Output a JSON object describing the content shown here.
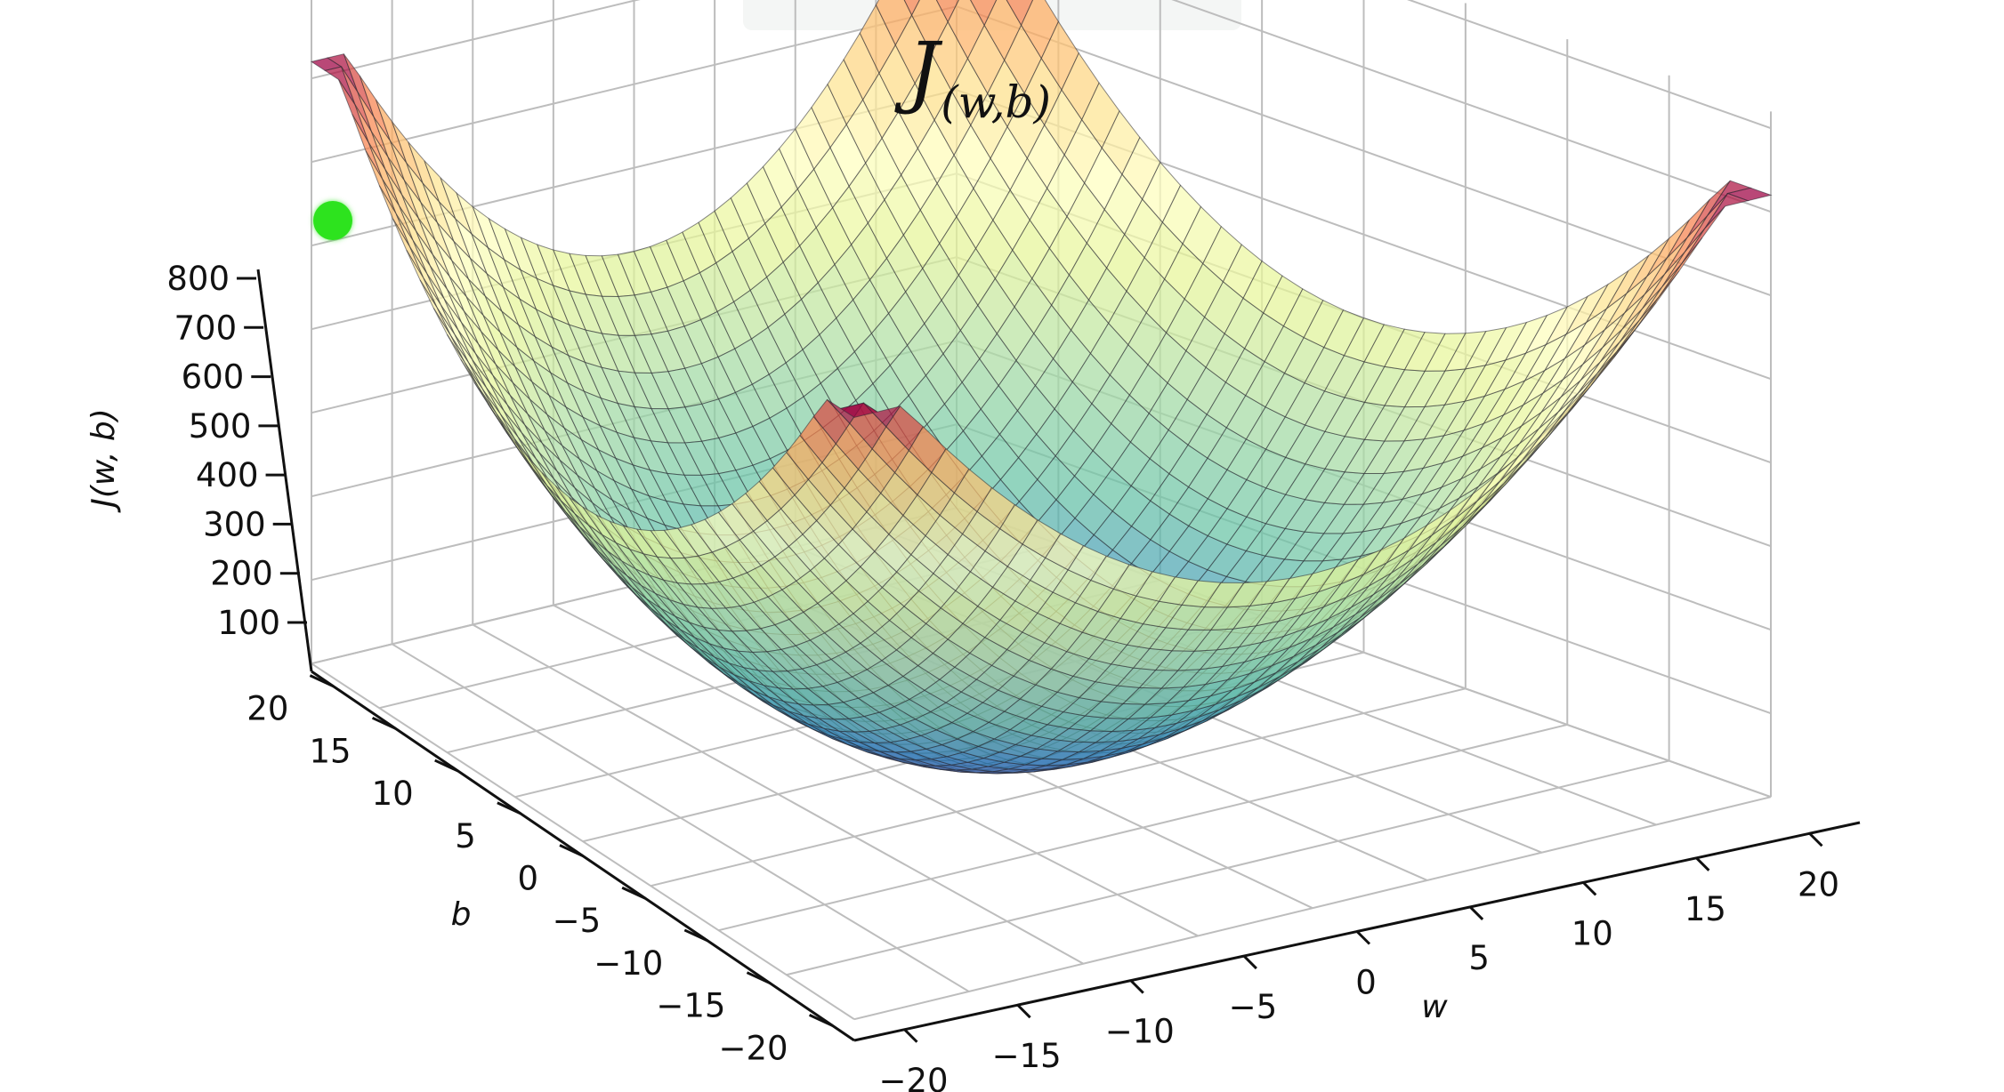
{
  "title": {
    "main": "J",
    "sub": "(w,b)"
  },
  "chart_data": {
    "type": "surface3d",
    "function": "J(w,b) = w^2 + b^2",
    "x_axis": {
      "label": "w",
      "range": [
        -20,
        20
      ],
      "ticks": [
        -20,
        -15,
        -10,
        -5,
        0,
        5,
        10,
        15,
        20
      ]
    },
    "y_axis": {
      "label": "b",
      "range": [
        -20,
        20
      ],
      "ticks": [
        -20,
        -15,
        -10,
        -5,
        0,
        5,
        10,
        15,
        20
      ]
    },
    "z_axis": {
      "label": "J(w, b)",
      "range": [
        0,
        800
      ],
      "ticks": [
        100,
        200,
        300,
        400,
        500,
        600,
        700,
        800
      ]
    },
    "grid": true,
    "colormap": "Spectral",
    "surface_samples": 40,
    "colors": {
      "point_marker": "#2de31e",
      "axis": "#111111",
      "grid": "#bdbdbd"
    }
  }
}
